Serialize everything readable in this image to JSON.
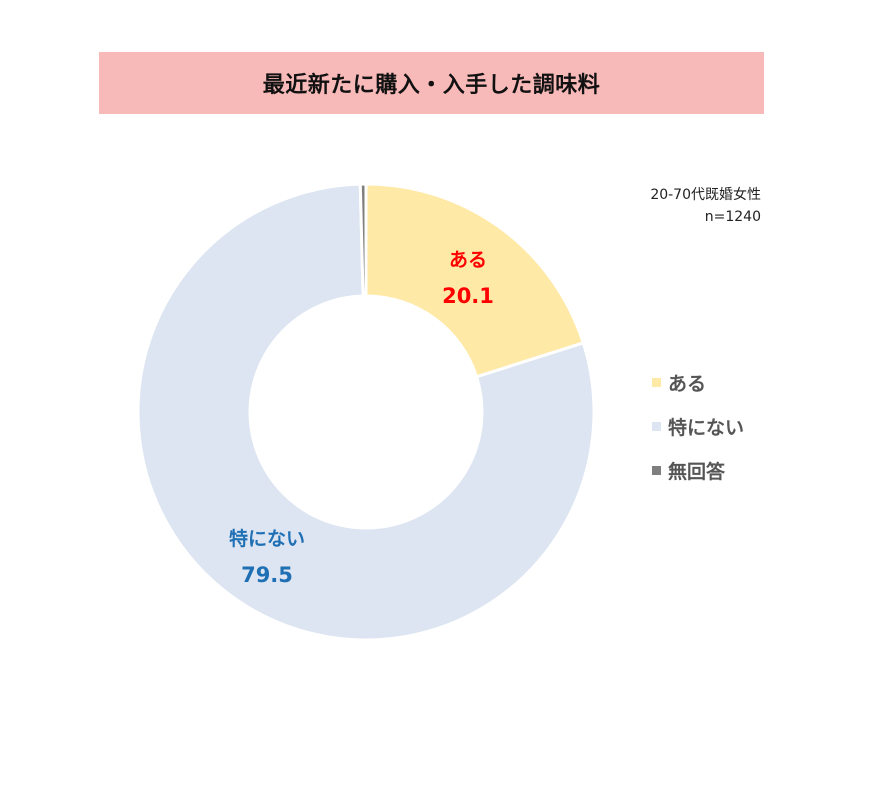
{
  "title": "最近新たに購入・入手した調味料",
  "note": {
    "line1": "20-70代既婚女性",
    "line2": "n=1240"
  },
  "chart_data": {
    "type": "pie",
    "variant": "donut",
    "title": "最近新たに購入・入手した調味料",
    "slices": [
      {
        "label": "ある",
        "value": 20.1,
        "color": "#ffe9a6",
        "label_color": "#ff0000"
      },
      {
        "label": "特にない",
        "value": 79.5,
        "color": "#dce5f1",
        "label_color": "#1f6fb4"
      },
      {
        "label": "無回答",
        "value": 0.4,
        "color": "#7f7f7f",
        "label_color": "#555555"
      }
    ],
    "legend_placement": "right"
  },
  "legend": [
    {
      "label": "ある",
      "color": "#ffe9a6"
    },
    {
      "label": "特にない",
      "color": "#dce5f1"
    },
    {
      "label": "無回答",
      "color": "#7f7f7f"
    }
  ],
  "labels": {
    "aru": {
      "name": "ある",
      "value": "20.1"
    },
    "tokuninai": {
      "name": "特にない",
      "value": "79.5"
    }
  }
}
